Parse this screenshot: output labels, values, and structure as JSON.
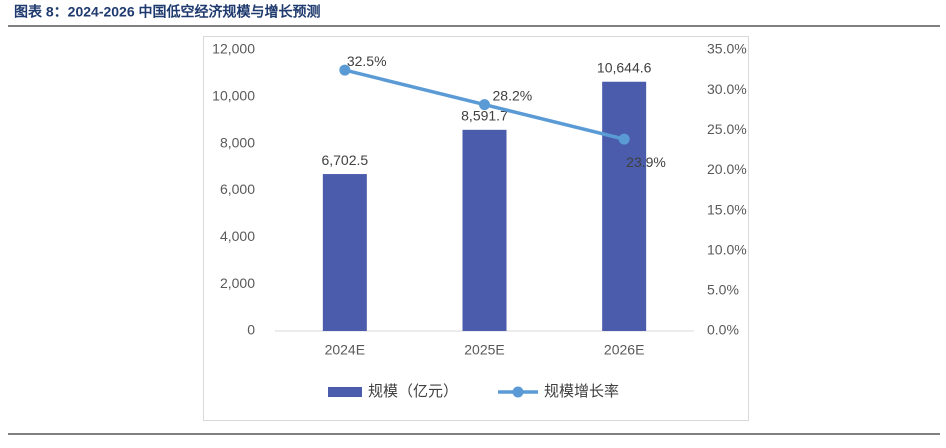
{
  "chart_data": {
    "type": "combo",
    "title": "图表 8：2024-2026 中国低空经济规模与增长预测",
    "categories": [
      "2024E",
      "2025E",
      "2026E"
    ],
    "series": [
      {
        "name": "规模（亿元）",
        "type": "bar",
        "color": "#4a5cab",
        "values": [
          6702.5,
          8591.7,
          10644.6
        ],
        "value_labels": [
          "6,702.5",
          "8,591.7",
          "10,644.6"
        ]
      },
      {
        "name": "规模增长率",
        "type": "line",
        "axis": "y2",
        "color": "#5b9bd5",
        "values": [
          32.5,
          28.2,
          23.9
        ],
        "value_labels": [
          "32.5%",
          "28.2%",
          "23.9%"
        ]
      }
    ],
    "ylim": [
      0,
      12000
    ],
    "yticks": [
      0,
      {
        "value": 2000,
        "label": "2,000"
      },
      {
        "value": 4000,
        "label": "4,000"
      },
      {
        "value": 6000,
        "label": "6,000"
      },
      {
        "value": 8000,
        "label": "8,000"
      },
      {
        "value": 10000,
        "label": "10,000"
      },
      {
        "value": 12000,
        "label": "12,000"
      }
    ],
    "y2lim": [
      0,
      35
    ],
    "y2ticks": [
      {
        "value": 0,
        "label": "0.0%"
      },
      {
        "value": 5,
        "label": "5.0%"
      },
      {
        "value": 10,
        "label": "10.0%"
      },
      {
        "value": 15,
        "label": "15.0%"
      },
      {
        "value": 20,
        "label": "20.0%"
      },
      {
        "value": 25,
        "label": "25.0%"
      },
      {
        "value": 30,
        "label": "30.0%"
      },
      {
        "value": 35,
        "label": "35.0%"
      }
    ],
    "grid": false,
    "legend": "bottom"
  }
}
